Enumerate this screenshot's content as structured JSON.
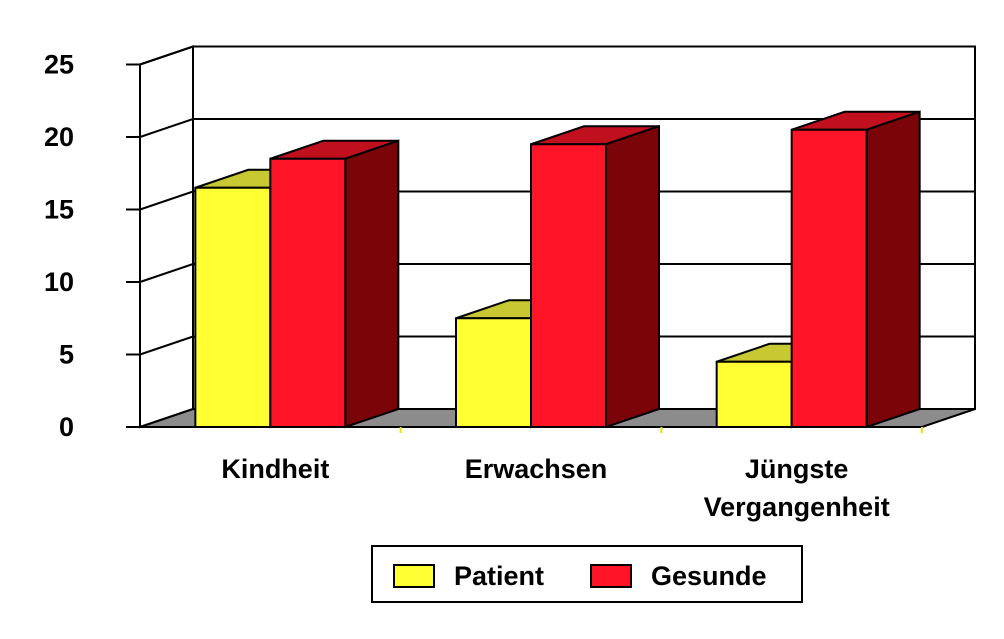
{
  "chart_data": {
    "type": "bar",
    "three_d": true,
    "title": "",
    "xlabel": "",
    "ylabel": "",
    "categories": [
      "Kindheit",
      "Erwachsen",
      "Jüngste Vergangenheit"
    ],
    "category_lines": [
      [
        "Kindheit"
      ],
      [
        "Erwachsen"
      ],
      [
        "Jüngste",
        "Vergangenheit"
      ]
    ],
    "series": [
      {
        "name": "Patient",
        "values": [
          16.5,
          7.5,
          4.5
        ],
        "color": "#ffff33",
        "top_color": "#c8c832",
        "side_color": "#9a9a20"
      },
      {
        "name": "Gesunde",
        "values": [
          18.5,
          19.5,
          20.5
        ],
        "color": "#ff1428",
        "top_color": "#c0101e",
        "side_color": "#7a0408"
      }
    ],
    "ylim": [
      0,
      25
    ],
    "yticks": [
      0,
      5,
      10,
      15,
      20,
      25
    ],
    "grid": true,
    "legend_position": "bottom-center",
    "floor_color": "#8c8c8c"
  }
}
